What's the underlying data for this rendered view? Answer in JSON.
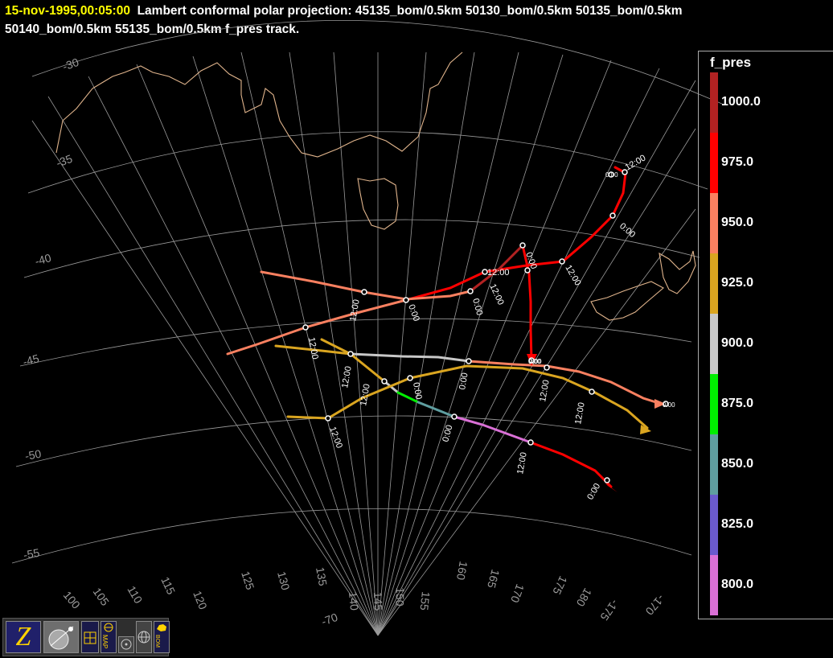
{
  "header": {
    "date": "15-nov-1995,00:05:00",
    "line1_rest": "Lambert conformal polar projection:  45135_bom/0.5km 50130_bom/0.5km 50135_bom/0.5km",
    "line2": "50140_bom/0.5km 55135_bom/0.5km f_pres track."
  },
  "colorbar": {
    "title": "f_pres",
    "levels": [
      {
        "label": "1000.0",
        "color": "#b22222"
      },
      {
        "label": "975.0",
        "color": "#ff0000"
      },
      {
        "label": "950.0",
        "color": "#fa8060"
      },
      {
        "label": "925.0",
        "color": "#daa520"
      },
      {
        "label": "900.0",
        "color": "#c8c8c8"
      },
      {
        "label": "875.0",
        "color": "#00ee00"
      },
      {
        "label": "850.0",
        "color": "#5f9ea0"
      },
      {
        "label": "825.0",
        "color": "#6a5acd"
      },
      {
        "label": "800.0",
        "color": "#da70d6"
      }
    ]
  },
  "map": {
    "lat_labels": [
      "-30",
      "-35",
      "-40",
      "-45",
      "-50",
      "-55"
    ],
    "lon_labels": [
      "100",
      "105",
      "110",
      "115",
      "120",
      "125",
      "130",
      "135",
      "140",
      "145",
      "150",
      "155",
      "160",
      "165",
      "170",
      "175",
      "180",
      "-175",
      "-170"
    ],
    "pole_label": "-70",
    "time_labels": [
      "12:00",
      "0:00",
      "0:00",
      "12:00",
      "12:00",
      "0:00",
      "12:00",
      "12:00",
      "0:00",
      "0:00",
      "12:00",
      "0:00",
      "12:00",
      "12:00",
      "0:00",
      "0:00",
      "0:00",
      "12:00",
      "12:00",
      "12:00",
      "0:00",
      "0:00",
      "12:00",
      "0:00"
    ]
  },
  "toolbar": {
    "buttons": [
      "zebra-logo",
      "satellite-radar",
      "grid",
      "MAP",
      "circle",
      "globe",
      "BOM"
    ]
  }
}
